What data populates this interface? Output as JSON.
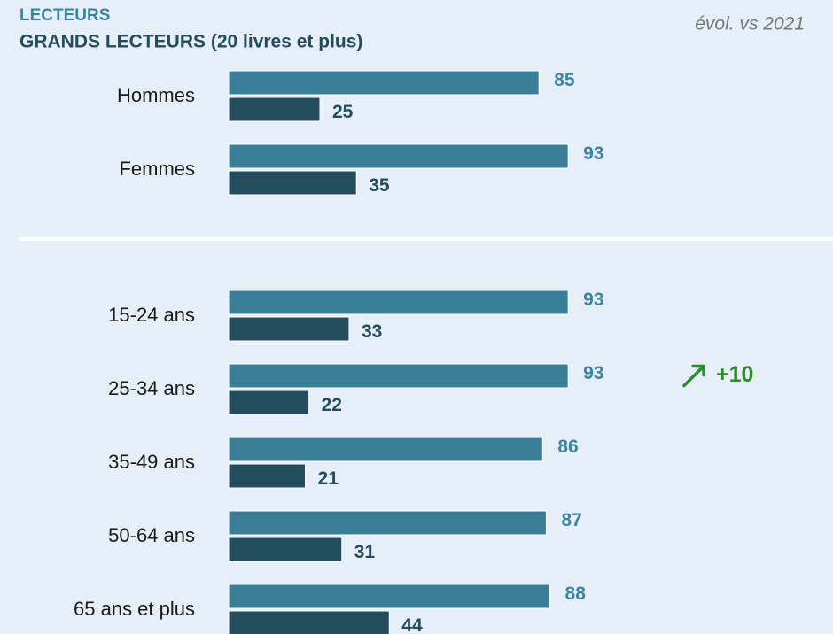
{
  "chart_data": {
    "type": "bar",
    "orientation": "horizontal",
    "subtitle": "évol. vs 2021",
    "categories": [
      "Hommes",
      "Femmes",
      "15-24 ans",
      "25-34 ans",
      "35-49 ans",
      "50-64 ans",
      "65 ans et plus"
    ],
    "series": [
      {
        "name": "LECTEURS",
        "color": "#3a7f97",
        "label_color": "#3a86a0",
        "values": [
          85,
          93,
          93,
          93,
          86,
          87,
          88
        ]
      },
      {
        "name": "GRANDS LECTEURS (20 livres et plus)",
        "color": "#234c5c",
        "label_color": "#234c5c",
        "values": [
          25,
          35,
          33,
          22,
          21,
          31,
          44
        ]
      }
    ],
    "xlim": [
      0,
      100
    ],
    "annotations": [
      {
        "category": "25-34 ans",
        "text": "+10",
        "color": "#2e8b2e"
      }
    ]
  }
}
